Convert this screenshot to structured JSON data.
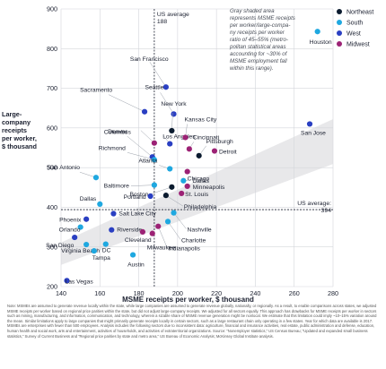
{
  "chart_data": {
    "type": "scatter",
    "title": "",
    "xlabel": "MSME receipts per worker, $ thousand",
    "ylabel_lines": [
      "Large-",
      "company",
      "receipts",
      "per worker,",
      "$ thousand"
    ],
    "xlim": [
      140,
      280
    ],
    "ylim": [
      200,
      900
    ],
    "x_ticks": [
      140,
      160,
      180,
      200,
      220,
      240,
      260,
      280
    ],
    "y_ticks": [
      200,
      300,
      400,
      500,
      600,
      700,
      800,
      900
    ],
    "grid": true,
    "averages": {
      "x": 188,
      "x_label_lines": [
        "US average",
        "188"
      ],
      "y": 394,
      "y_label_lines": [
        "US average:",
        "394"
      ]
    },
    "band_annotation": [
      "Gray shaded area",
      "represents MSME receipts",
      "per worker/large-compa-",
      "ny receipts per worker",
      "ratio of 45–55% (metro-",
      "politan statistical areas",
      "accounting for ~30% of",
      "MSME employment fall",
      "within this range)."
    ],
    "band_ratio": [
      0.45,
      0.55
    ],
    "legend": [
      {
        "name": "Northeast",
        "color": "#0b1b2f"
      },
      {
        "name": "South",
        "color": "#1fa8e0"
      },
      {
        "name": "West",
        "color": "#2a3fc2"
      },
      {
        "name": "Midwest",
        "color": "#9c2275"
      }
    ],
    "legend_position": "top-right",
    "points": [
      {
        "label": "Houston",
        "x": 272,
        "y": 843,
        "region": "South"
      },
      {
        "label": "San Jose",
        "x": 268,
        "y": 610,
        "region": "West"
      },
      {
        "label": "San Francisco",
        "x": 194,
        "y": 703,
        "region": "West"
      },
      {
        "label": "Seattle",
        "x": 198,
        "y": 635,
        "region": "West"
      },
      {
        "label": "Sacramento",
        "x": 183,
        "y": 641,
        "region": "West"
      },
      {
        "label": "New York",
        "x": 197,
        "y": 593,
        "region": "Northeast"
      },
      {
        "label": "Columbus",
        "x": 188,
        "y": 562,
        "region": "Midwest"
      },
      {
        "label": "Los Angeles",
        "x": 196,
        "y": 560,
        "region": "West"
      },
      {
        "label": "Kansas City",
        "x": 204,
        "y": 576,
        "region": "Midwest"
      },
      {
        "label": "Cincinnati",
        "x": 206,
        "y": 547,
        "region": "Midwest"
      },
      {
        "label": "Pittsburgh",
        "x": 211,
        "y": 530,
        "region": "Northeast"
      },
      {
        "label": "Detroit",
        "x": 219,
        "y": 542,
        "region": "Midwest"
      },
      {
        "label": "Denver",
        "x": 187,
        "y": 527,
        "region": "West"
      },
      {
        "label": "Richmond",
        "x": 188,
        "y": 520,
        "region": "South"
      },
      {
        "label": "Atlanta",
        "x": 196,
        "y": 497,
        "region": "South"
      },
      {
        "label": "Chicago",
        "x": 205,
        "y": 490,
        "region": "Midwest"
      },
      {
        "label": "Dallas",
        "x": 203,
        "y": 467,
        "region": "South"
      },
      {
        "label": "San Antonio",
        "x": 158,
        "y": 475,
        "region": "South"
      },
      {
        "label": "Baltimore",
        "x": 188,
        "y": 456,
        "region": "South"
      },
      {
        "label": "Boston",
        "x": 197,
        "y": 451,
        "region": "Northeast"
      },
      {
        "label": "Minneapolis",
        "x": 205,
        "y": 453,
        "region": "Midwest"
      },
      {
        "label": "Portland",
        "x": 186,
        "y": 428,
        "region": "West"
      },
      {
        "label": "St. Louis",
        "x": 202,
        "y": 435,
        "region": "Midwest"
      },
      {
        "label": "Philadelphia",
        "x": 194,
        "y": 430,
        "region": "Northeast"
      },
      {
        "label": "Dallas",
        "x": 160,
        "y": 408,
        "region": "South"
      },
      {
        "label": "Salt Lake City",
        "x": 167,
        "y": 384,
        "region": "West"
      },
      {
        "label": "Nashville",
        "x": 198,
        "y": 386,
        "region": "South"
      },
      {
        "label": "Phoenix",
        "x": 153,
        "y": 370,
        "region": "West"
      },
      {
        "label": "Charlotte",
        "x": 195,
        "y": 364,
        "region": "South"
      },
      {
        "label": "Orlando",
        "x": 150,
        "y": 350,
        "region": "South"
      },
      {
        "label": "Riverside",
        "x": 166,
        "y": 343,
        "region": "West"
      },
      {
        "label": "Indianapolis",
        "x": 190,
        "y": 352,
        "region": "Midwest"
      },
      {
        "label": "Cleveland",
        "x": 182,
        "y": 338,
        "region": "Midwest"
      },
      {
        "label": "Milwaukee",
        "x": 187,
        "y": 334,
        "region": "Midwest"
      },
      {
        "label": "San Diego",
        "x": 147,
        "y": 324,
        "region": "West"
      },
      {
        "label": "Virginia Beach",
        "x": 153,
        "y": 306,
        "region": "South"
      },
      {
        "label": "DC",
        "x": 163,
        "y": 307,
        "region": "South"
      },
      {
        "label": "Tampa",
        "x": 157,
        "y": 290,
        "region": "South"
      },
      {
        "label": "Austin",
        "x": 177,
        "y": 280,
        "region": "South"
      },
      {
        "label": "Las Vegas",
        "x": 143,
        "y": 215,
        "region": "West"
      }
    ]
  },
  "footnote": "Note: MSMEs are assumed to generate revenue locally within the state, while large companies are assumed to generate revenue globally, nationally, or regionally. As a result, to enable comparisons across states, we adjusted MSME receipts per worker based on regional price parities within the state, but did not adjust large-company receipts. We adjusted for all sectors equally. This approach has drawbacks for MSME receipts per worker in sectors such as mining, manufacturing, and information, communication, and technology, wherein a sizable share of MSME revenue generation might be nonlocal. We estimate that this limitation could imply ~10–15% variation around the mean. Similar limitations apply to large companies that might primarily generate receipts locally in certain sectors, such as a large restaurant chain only operating in a few states. Year for which data are available is 2017. MSMEs are enterprises with fewer than 500 employees. Analysis includes the following sectors due to inconsistent data: agriculture, financial and insurance activities, real estate, public administration and defense, education, human health and social work, arts and entertainment, activities of households, and activities of extraterritorial organizations. Source: “Nonemployer statistics,” US Census Bureau; “Updated and expanded small business statistics,” Survey of Current Business and “Regional price parities by state and metro area,” US Bureau of Economic Analysis; McKinsey Global Institute analysis."
}
